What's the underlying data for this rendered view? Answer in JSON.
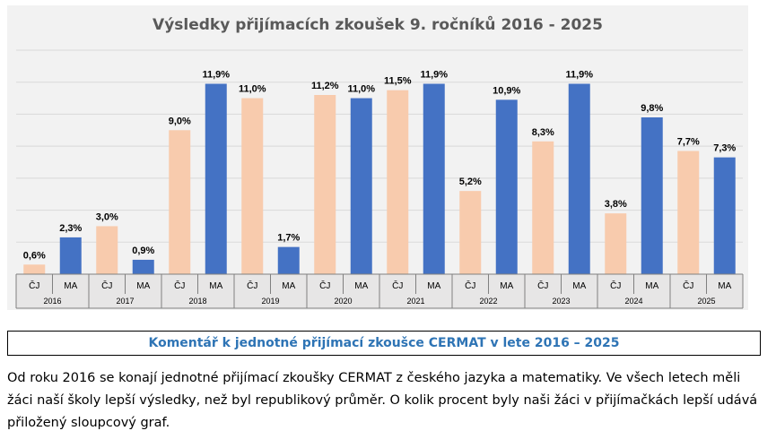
{
  "chart_data": {
    "type": "bar",
    "title": "Výsledky přijímacích zkoušek 9. ročníků 2016 - 2025",
    "categories": [
      "2016",
      "2017",
      "2018",
      "2019",
      "2020",
      "2021",
      "2022",
      "2023",
      "2024",
      "2025"
    ],
    "series": [
      {
        "name": "ČJ",
        "values": [
          0.6,
          3.0,
          9.0,
          11.0,
          11.2,
          11.5,
          5.2,
          8.3,
          3.8,
          7.7
        ],
        "labels": [
          "0,6%",
          "3,0%",
          "9,0%",
          "11,0%",
          "11,2%",
          "11,5%",
          "5,2%",
          "8,3%",
          "3,8%",
          "7,7%"
        ]
      },
      {
        "name": "MA",
        "values": [
          2.3,
          0.9,
          11.9,
          1.7,
          11.0,
          11.9,
          10.9,
          11.9,
          9.8,
          7.3
        ],
        "labels": [
          "2,3%",
          "0,9%",
          "11,9%",
          "1,7%",
          "11,0%",
          "11,9%",
          "10,9%",
          "11,9%",
          "9,8%",
          "7,3%"
        ]
      }
    ],
    "ylim": [
      0,
      14
    ],
    "grid": true,
    "legend": "none",
    "colors": {
      "CJ": "#f8cbad",
      "MA": "#4472c4"
    }
  },
  "comment": {
    "title": "Komentář k jednotné přijímací zkoušce CERMAT v lete 2016 – 2025",
    "text": "Od roku 2016 se konají jednotné přijímací zkoušky CERMAT z českého jazyka a matematiky. Ve všech letech měli žáci naší školy lepší výsledky, než byl republikový průměr. O kolik procent byly naši žáci v přijímačkách lepší udává přiložený sloupcový graf."
  }
}
